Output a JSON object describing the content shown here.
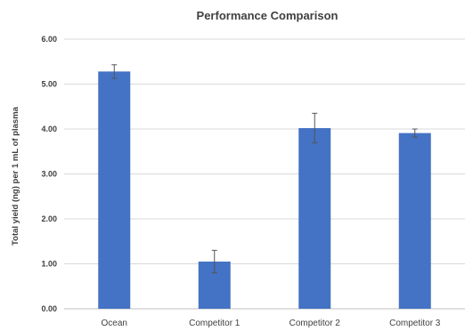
{
  "chart_data": {
    "type": "bar",
    "title": "Performance Comparison",
    "xlabel": "",
    "ylabel": "Total yield (ng) per 1 mL of plasma",
    "categories": [
      "Ocean",
      "Competitor 1",
      "Competitor 2",
      "Competitor 3"
    ],
    "values": [
      5.28,
      1.05,
      4.02,
      3.91
    ],
    "error": [
      0.15,
      0.25,
      0.33,
      0.09
    ],
    "ylim": [
      0,
      6
    ],
    "yticks": [
      "0.00",
      "1.00",
      "2.00",
      "3.00",
      "4.00",
      "5.00",
      "6.00"
    ],
    "grid": true,
    "legend": "none",
    "bar_color": "#4472C4"
  }
}
